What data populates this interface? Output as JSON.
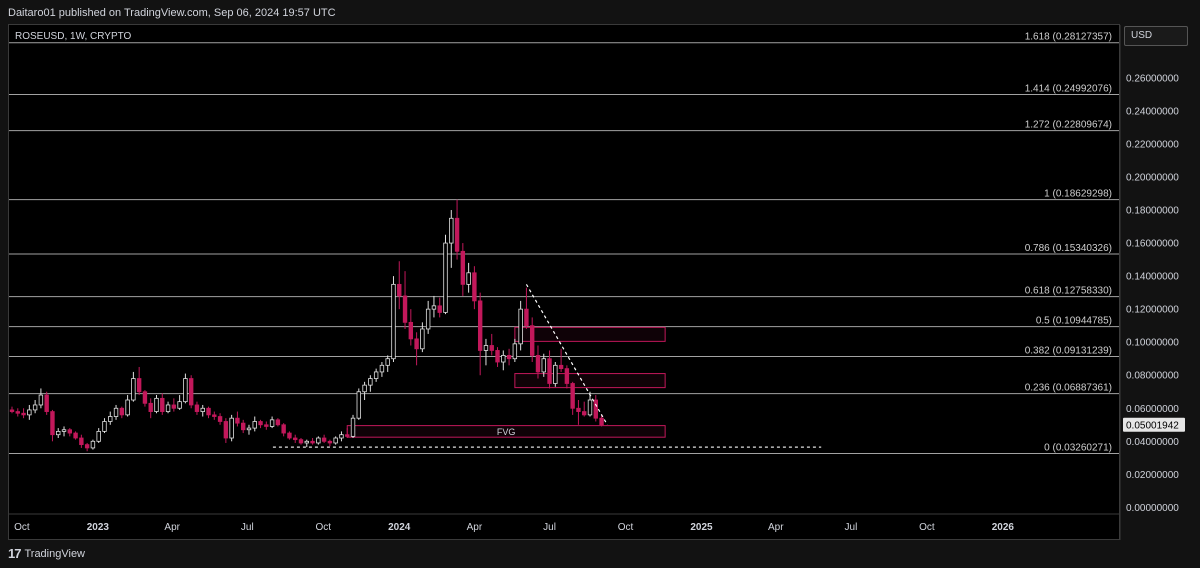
{
  "header": {
    "published": "Daitaro01 published on TradingView.com, Sep 06, 2024 19:57 UTC"
  },
  "symbol": "ROSEUSD, 1W, CRYPTO",
  "currency": "USD",
  "footer": {
    "brand": "TradingView",
    "logo": "tradingview-logo-icon"
  },
  "colors": {
    "up": "#e0e0e0",
    "down": "#c2185b",
    "level": "#bfbfbf",
    "fvg": "#c2185b",
    "background": "#000000"
  },
  "chart_data": {
    "type": "candlestick",
    "ylim": [
      -0.004,
      0.292
    ],
    "y_ticks": [
      "0.00000000",
      "0.02000000",
      "0.04000000",
      "0.06000000",
      "0.08000000",
      "0.10000000",
      "0.12000000",
      "0.14000000",
      "0.16000000",
      "0.18000000",
      "0.20000000",
      "0.22000000",
      "0.24000000",
      "0.26000000"
    ],
    "y_tick_values": [
      0,
      0.02,
      0.04,
      0.06,
      0.08,
      0.1,
      0.12,
      0.14,
      0.16,
      0.18,
      0.2,
      0.22,
      0.24,
      0.26
    ],
    "x_ticks": [
      {
        "label": "Oct",
        "date": "2022-10-01",
        "bold": false
      },
      {
        "label": "2023",
        "date": "2023-01-01",
        "bold": true
      },
      {
        "label": "Apr",
        "date": "2023-04-01",
        "bold": false
      },
      {
        "label": "Jul",
        "date": "2023-07-01",
        "bold": false
      },
      {
        "label": "Oct",
        "date": "2023-10-01",
        "bold": false
      },
      {
        "label": "2024",
        "date": "2024-01-01",
        "bold": true
      },
      {
        "label": "Apr",
        "date": "2024-04-01",
        "bold": false
      },
      {
        "label": "Jul",
        "date": "2024-07-01",
        "bold": false
      },
      {
        "label": "Oct",
        "date": "2024-10-01",
        "bold": false
      },
      {
        "label": "2025",
        "date": "2025-01-01",
        "bold": true
      },
      {
        "label": "Apr",
        "date": "2025-04-01",
        "bold": false
      },
      {
        "label": "Jul",
        "date": "2025-07-01",
        "bold": false
      },
      {
        "label": "Oct",
        "date": "2025-10-01",
        "bold": false
      },
      {
        "label": "2026",
        "date": "2026-01-01",
        "bold": true
      }
    ],
    "fib_levels": [
      {
        "ratio": "1.618",
        "value": 0.28127357,
        "label": "1.618 (0.28127357)"
      },
      {
        "ratio": "1.414",
        "value": 0.24992076,
        "label": "1.414 (0.24992076)"
      },
      {
        "ratio": "1.272",
        "value": 0.22809674,
        "label": "1.272 (0.22809674)"
      },
      {
        "ratio": "1",
        "value": 0.18629298,
        "label": "1 (0.18629298)"
      },
      {
        "ratio": "0.786",
        "value": 0.15340326,
        "label": "0.786 (0.15340326)"
      },
      {
        "ratio": "0.618",
        "value": 0.1275833,
        "label": "0.618 (0.12758330)"
      },
      {
        "ratio": "0.5",
        "value": 0.10944785,
        "label": "0.5 (0.10944785)"
      },
      {
        "ratio": "0.382",
        "value": 0.09131239,
        "label": "0.382 (0.09131239)"
      },
      {
        "ratio": "0.236",
        "value": 0.06887361,
        "label": "0.236 (0.06887361)"
      },
      {
        "ratio": "0",
        "value": 0.03260271,
        "label": "0 (0.03260271)"
      }
    ],
    "fib_start_date": "2022-09-19",
    "fib_end_date": "2024-11-18",
    "current_price": {
      "value": 0.05001942,
      "label": "0.05001942"
    },
    "zones": [
      {
        "label": "",
        "date_from": "2024-05-20",
        "date_to": "2024-11-18",
        "y_low": 0.1005,
        "y_high": 0.109
      },
      {
        "label": "",
        "date_from": "2024-05-20",
        "date_to": "2024-11-18",
        "y_low": 0.0725,
        "y_high": 0.081
      },
      {
        "label": "FVG",
        "date_from": "2023-10-30",
        "date_to": "2024-11-18",
        "y_low": 0.0425,
        "y_high": 0.0495
      }
    ],
    "support_line": {
      "date_from": "2023-08-01",
      "date_to": "2025-05-26",
      "value": 0.0365
    },
    "trend_line": {
      "from": {
        "date": "2024-06-03",
        "value": 0.135
      },
      "to": {
        "date": "2024-09-09",
        "value": 0.05
      }
    },
    "candles": [
      {
        "d": "2022-09-19",
        "o": 0.059,
        "h": 0.061,
        "l": 0.057,
        "c": 0.058
      },
      {
        "d": "2022-09-26",
        "o": 0.058,
        "h": 0.06,
        "l": 0.055,
        "c": 0.057
      },
      {
        "d": "2022-10-03",
        "o": 0.057,
        "h": 0.06,
        "l": 0.054,
        "c": 0.056
      },
      {
        "d": "2022-10-10",
        "o": 0.056,
        "h": 0.062,
        "l": 0.053,
        "c": 0.059
      },
      {
        "d": "2022-10-17",
        "o": 0.059,
        "h": 0.065,
        "l": 0.057,
        "c": 0.062
      },
      {
        "d": "2022-10-24",
        "o": 0.062,
        "h": 0.072,
        "l": 0.06,
        "c": 0.068
      },
      {
        "d": "2022-10-31",
        "o": 0.068,
        "h": 0.07,
        "l": 0.056,
        "c": 0.058
      },
      {
        "d": "2022-11-07",
        "o": 0.058,
        "h": 0.059,
        "l": 0.04,
        "c": 0.044
      },
      {
        "d": "2022-11-14",
        "o": 0.044,
        "h": 0.048,
        "l": 0.042,
        "c": 0.046
      },
      {
        "d": "2022-11-21",
        "o": 0.046,
        "h": 0.049,
        "l": 0.043,
        "c": 0.047
      },
      {
        "d": "2022-11-28",
        "o": 0.047,
        "h": 0.048,
        "l": 0.043,
        "c": 0.045
      },
      {
        "d": "2022-12-05",
        "o": 0.045,
        "h": 0.046,
        "l": 0.041,
        "c": 0.042
      },
      {
        "d": "2022-12-12",
        "o": 0.042,
        "h": 0.044,
        "l": 0.036,
        "c": 0.038
      },
      {
        "d": "2022-12-19",
        "o": 0.038,
        "h": 0.039,
        "l": 0.034,
        "c": 0.036
      },
      {
        "d": "2022-12-26",
        "o": 0.036,
        "h": 0.041,
        "l": 0.035,
        "c": 0.04
      },
      {
        "d": "2023-01-02",
        "o": 0.04,
        "h": 0.048,
        "l": 0.039,
        "c": 0.046
      },
      {
        "d": "2023-01-09",
        "o": 0.046,
        "h": 0.054,
        "l": 0.045,
        "c": 0.052
      },
      {
        "d": "2023-01-16",
        "o": 0.052,
        "h": 0.058,
        "l": 0.05,
        "c": 0.055
      },
      {
        "d": "2023-01-23",
        "o": 0.055,
        "h": 0.062,
        "l": 0.053,
        "c": 0.06
      },
      {
        "d": "2023-01-30",
        "o": 0.06,
        "h": 0.061,
        "l": 0.054,
        "c": 0.056
      },
      {
        "d": "2023-02-06",
        "o": 0.056,
        "h": 0.068,
        "l": 0.055,
        "c": 0.065
      },
      {
        "d": "2023-02-13",
        "o": 0.065,
        "h": 0.082,
        "l": 0.064,
        "c": 0.078
      },
      {
        "d": "2023-02-20",
        "o": 0.078,
        "h": 0.085,
        "l": 0.068,
        "c": 0.07
      },
      {
        "d": "2023-02-27",
        "o": 0.07,
        "h": 0.071,
        "l": 0.061,
        "c": 0.063
      },
      {
        "d": "2023-03-06",
        "o": 0.063,
        "h": 0.066,
        "l": 0.054,
        "c": 0.058
      },
      {
        "d": "2023-03-13",
        "o": 0.058,
        "h": 0.068,
        "l": 0.057,
        "c": 0.066
      },
      {
        "d": "2023-03-20",
        "o": 0.066,
        "h": 0.069,
        "l": 0.056,
        "c": 0.058
      },
      {
        "d": "2023-03-27",
        "o": 0.058,
        "h": 0.064,
        "l": 0.057,
        "c": 0.062
      },
      {
        "d": "2023-04-03",
        "o": 0.062,
        "h": 0.066,
        "l": 0.058,
        "c": 0.06
      },
      {
        "d": "2023-04-10",
        "o": 0.06,
        "h": 0.068,
        "l": 0.059,
        "c": 0.064
      },
      {
        "d": "2023-04-17",
        "o": 0.064,
        "h": 0.081,
        "l": 0.063,
        "c": 0.078
      },
      {
        "d": "2023-04-24",
        "o": 0.078,
        "h": 0.08,
        "l": 0.06,
        "c": 0.062
      },
      {
        "d": "2023-05-01",
        "o": 0.062,
        "h": 0.064,
        "l": 0.056,
        "c": 0.058
      },
      {
        "d": "2023-05-08",
        "o": 0.058,
        "h": 0.062,
        "l": 0.055,
        "c": 0.06
      },
      {
        "d": "2023-05-15",
        "o": 0.06,
        "h": 0.061,
        "l": 0.054,
        "c": 0.056
      },
      {
        "d": "2023-05-22",
        "o": 0.056,
        "h": 0.058,
        "l": 0.053,
        "c": 0.055
      },
      {
        "d": "2023-05-29",
        "o": 0.055,
        "h": 0.057,
        "l": 0.05,
        "c": 0.052
      },
      {
        "d": "2023-06-05",
        "o": 0.052,
        "h": 0.054,
        "l": 0.039,
        "c": 0.042
      },
      {
        "d": "2023-06-12",
        "o": 0.042,
        "h": 0.056,
        "l": 0.04,
        "c": 0.054
      },
      {
        "d": "2023-06-19",
        "o": 0.054,
        "h": 0.058,
        "l": 0.049,
        "c": 0.051
      },
      {
        "d": "2023-06-26",
        "o": 0.051,
        "h": 0.053,
        "l": 0.045,
        "c": 0.047
      },
      {
        "d": "2023-07-03",
        "o": 0.047,
        "h": 0.05,
        "l": 0.044,
        "c": 0.048
      },
      {
        "d": "2023-07-10",
        "o": 0.048,
        "h": 0.055,
        "l": 0.046,
        "c": 0.052
      },
      {
        "d": "2023-07-17",
        "o": 0.052,
        "h": 0.053,
        "l": 0.048,
        "c": 0.05
      },
      {
        "d": "2023-07-24",
        "o": 0.05,
        "h": 0.052,
        "l": 0.047,
        "c": 0.049
      },
      {
        "d": "2023-07-31",
        "o": 0.049,
        "h": 0.055,
        "l": 0.048,
        "c": 0.053
      },
      {
        "d": "2023-08-07",
        "o": 0.053,
        "h": 0.054,
        "l": 0.049,
        "c": 0.05
      },
      {
        "d": "2023-08-14",
        "o": 0.05,
        "h": 0.051,
        "l": 0.043,
        "c": 0.045
      },
      {
        "d": "2023-08-21",
        "o": 0.045,
        "h": 0.046,
        "l": 0.041,
        "c": 0.042
      },
      {
        "d": "2023-08-28",
        "o": 0.042,
        "h": 0.044,
        "l": 0.039,
        "c": 0.041
      },
      {
        "d": "2023-09-04",
        "o": 0.041,
        "h": 0.042,
        "l": 0.038,
        "c": 0.039
      },
      {
        "d": "2023-09-11",
        "o": 0.039,
        "h": 0.041,
        "l": 0.0365,
        "c": 0.04
      },
      {
        "d": "2023-09-18",
        "o": 0.04,
        "h": 0.042,
        "l": 0.038,
        "c": 0.039
      },
      {
        "d": "2023-09-25",
        "o": 0.039,
        "h": 0.043,
        "l": 0.038,
        "c": 0.042
      },
      {
        "d": "2023-10-02",
        "o": 0.042,
        "h": 0.044,
        "l": 0.039,
        "c": 0.04
      },
      {
        "d": "2023-10-09",
        "o": 0.04,
        "h": 0.041,
        "l": 0.037,
        "c": 0.039
      },
      {
        "d": "2023-10-16",
        "o": 0.039,
        "h": 0.043,
        "l": 0.038,
        "c": 0.042
      },
      {
        "d": "2023-10-23",
        "o": 0.042,
        "h": 0.046,
        "l": 0.04,
        "c": 0.044
      },
      {
        "d": "2023-10-30",
        "o": 0.044,
        "h": 0.048,
        "l": 0.042,
        "c": 0.043
      },
      {
        "d": "2023-11-06",
        "o": 0.043,
        "h": 0.056,
        "l": 0.042,
        "c": 0.054
      },
      {
        "d": "2023-11-13",
        "o": 0.054,
        "h": 0.072,
        "l": 0.053,
        "c": 0.07
      },
      {
        "d": "2023-11-20",
        "o": 0.07,
        "h": 0.076,
        "l": 0.065,
        "c": 0.074
      },
      {
        "d": "2023-11-27",
        "o": 0.074,
        "h": 0.08,
        "l": 0.07,
        "c": 0.078
      },
      {
        "d": "2023-12-04",
        "o": 0.078,
        "h": 0.084,
        "l": 0.076,
        "c": 0.082
      },
      {
        "d": "2023-12-11",
        "o": 0.082,
        "h": 0.088,
        "l": 0.079,
        "c": 0.086
      },
      {
        "d": "2023-12-18",
        "o": 0.086,
        "h": 0.092,
        "l": 0.082,
        "c": 0.09
      },
      {
        "d": "2023-12-25",
        "o": 0.09,
        "h": 0.14,
        "l": 0.088,
        "c": 0.135
      },
      {
        "d": "2024-01-01",
        "o": 0.135,
        "h": 0.149,
        "l": 0.12,
        "c": 0.128
      },
      {
        "d": "2024-01-08",
        "o": 0.128,
        "h": 0.143,
        "l": 0.108,
        "c": 0.112
      },
      {
        "d": "2024-01-15",
        "o": 0.112,
        "h": 0.12,
        "l": 0.098,
        "c": 0.102
      },
      {
        "d": "2024-01-22",
        "o": 0.102,
        "h": 0.106,
        "l": 0.086,
        "c": 0.096
      },
      {
        "d": "2024-01-29",
        "o": 0.096,
        "h": 0.112,
        "l": 0.094,
        "c": 0.108
      },
      {
        "d": "2024-02-05",
        "o": 0.108,
        "h": 0.125,
        "l": 0.105,
        "c": 0.12
      },
      {
        "d": "2024-02-12",
        "o": 0.12,
        "h": 0.128,
        "l": 0.115,
        "c": 0.122
      },
      {
        "d": "2024-02-19",
        "o": 0.122,
        "h": 0.127,
        "l": 0.115,
        "c": 0.118
      },
      {
        "d": "2024-02-26",
        "o": 0.118,
        "h": 0.165,
        "l": 0.117,
        "c": 0.16
      },
      {
        "d": "2024-03-04",
        "o": 0.16,
        "h": 0.18,
        "l": 0.145,
        "c": 0.175
      },
      {
        "d": "2024-03-11",
        "o": 0.175,
        "h": 0.1863,
        "l": 0.15,
        "c": 0.155
      },
      {
        "d": "2024-03-18",
        "o": 0.155,
        "h": 0.16,
        "l": 0.128,
        "c": 0.135
      },
      {
        "d": "2024-03-25",
        "o": 0.135,
        "h": 0.148,
        "l": 0.13,
        "c": 0.142
      },
      {
        "d": "2024-04-01",
        "o": 0.142,
        "h": 0.146,
        "l": 0.12,
        "c": 0.125
      },
      {
        "d": "2024-04-08",
        "o": 0.125,
        "h": 0.13,
        "l": 0.08,
        "c": 0.095
      },
      {
        "d": "2024-04-15",
        "o": 0.095,
        "h": 0.102,
        "l": 0.086,
        "c": 0.098
      },
      {
        "d": "2024-04-22",
        "o": 0.098,
        "h": 0.105,
        "l": 0.092,
        "c": 0.095
      },
      {
        "d": "2024-04-29",
        "o": 0.095,
        "h": 0.097,
        "l": 0.085,
        "c": 0.088
      },
      {
        "d": "2024-05-06",
        "o": 0.088,
        "h": 0.095,
        "l": 0.083,
        "c": 0.092
      },
      {
        "d": "2024-05-13",
        "o": 0.092,
        "h": 0.096,
        "l": 0.086,
        "c": 0.09
      },
      {
        "d": "2024-05-20",
        "o": 0.09,
        "h": 0.102,
        "l": 0.088,
        "c": 0.099
      },
      {
        "d": "2024-05-27",
        "o": 0.099,
        "h": 0.125,
        "l": 0.095,
        "c": 0.12
      },
      {
        "d": "2024-06-03",
        "o": 0.12,
        "h": 0.133,
        "l": 0.108,
        "c": 0.11
      },
      {
        "d": "2024-06-10",
        "o": 0.11,
        "h": 0.115,
        "l": 0.088,
        "c": 0.092
      },
      {
        "d": "2024-06-17",
        "o": 0.092,
        "h": 0.098,
        "l": 0.078,
        "c": 0.082
      },
      {
        "d": "2024-06-24",
        "o": 0.082,
        "h": 0.093,
        "l": 0.079,
        "c": 0.09
      },
      {
        "d": "2024-07-01",
        "o": 0.09,
        "h": 0.095,
        "l": 0.072,
        "c": 0.075
      },
      {
        "d": "2024-07-08",
        "o": 0.075,
        "h": 0.088,
        "l": 0.073,
        "c": 0.086
      },
      {
        "d": "2024-07-15",
        "o": 0.086,
        "h": 0.096,
        "l": 0.082,
        "c": 0.084
      },
      {
        "d": "2024-07-22",
        "o": 0.084,
        "h": 0.086,
        "l": 0.072,
        "c": 0.075
      },
      {
        "d": "2024-07-29",
        "o": 0.075,
        "h": 0.076,
        "l": 0.056,
        "c": 0.06
      },
      {
        "d": "2024-08-05",
        "o": 0.06,
        "h": 0.065,
        "l": 0.05,
        "c": 0.058
      },
      {
        "d": "2024-08-12",
        "o": 0.058,
        "h": 0.064,
        "l": 0.055,
        "c": 0.056
      },
      {
        "d": "2024-08-19",
        "o": 0.056,
        "h": 0.07,
        "l": 0.055,
        "c": 0.065
      },
      {
        "d": "2024-08-26",
        "o": 0.065,
        "h": 0.068,
        "l": 0.052,
        "c": 0.054
      },
      {
        "d": "2024-09-02",
        "o": 0.054,
        "h": 0.056,
        "l": 0.049,
        "c": 0.05
      }
    ]
  }
}
